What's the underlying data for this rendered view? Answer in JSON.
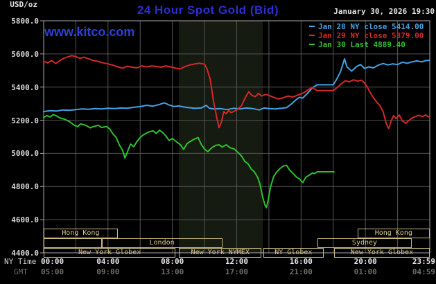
{
  "header": {
    "units_label": "USD/oz",
    "title": "24 Hour Spot Gold (Bid)",
    "datetime": "January 30, 2026 19:30",
    "watermark": "www.kitco.com"
  },
  "legend": {
    "items": [
      {
        "label": "Jan 28 NY close 5414.00",
        "color": "#44a4e4"
      },
      {
        "label": "Jan 29 NY close 5379.00",
        "color": "#d62828"
      },
      {
        "label": "Jan 30 Last 4889.40",
        "color": "#2cc22c"
      }
    ]
  },
  "axes": {
    "ny_time_label": "NY Time",
    "gmt_label": "GMT",
    "yticks": [
      {
        "label": "5800.0",
        "value": 5800
      },
      {
        "label": "5600.0",
        "value": 5600
      },
      {
        "label": "5400.0",
        "value": 5400
      },
      {
        "label": "5200.0",
        "value": 5200
      },
      {
        "label": "5000.0",
        "value": 5000
      },
      {
        "label": "4800.0",
        "value": 4800
      },
      {
        "label": "4600.0",
        "value": 4600
      },
      {
        "label": "4400.0",
        "value": 4400
      }
    ],
    "xticks": [
      {
        "t": 0,
        "ny": "00:00",
        "gmt": "05:00",
        "align": "left"
      },
      {
        "t": 4,
        "ny": "04:00",
        "gmt": "09:00",
        "align": "center"
      },
      {
        "t": 8,
        "ny": "08:00",
        "gmt": "13:00",
        "align": "center"
      },
      {
        "t": 12,
        "ny": "12:00",
        "gmt": "17:00",
        "align": "center"
      },
      {
        "t": 16,
        "ny": "16:00",
        "gmt": "21:00",
        "align": "center"
      },
      {
        "t": 20,
        "ny": "20:00",
        "gmt": "01:00",
        "align": "center"
      },
      {
        "t": 23.983,
        "ny": "23:59",
        "gmt": "04:59",
        "align": "right"
      }
    ]
  },
  "sessions": {
    "rows": [
      {
        "boxes": [
          {
            "label": "Hong Kong",
            "t0": 0,
            "t1": 4.6
          },
          {
            "label": "Hong Kong",
            "t0": 19.5,
            "t1": 24
          }
        ]
      },
      {
        "boxes": [
          {
            "label": "",
            "t0": 0,
            "t1": 3.6
          },
          {
            "label": "London",
            "t0": 3.6,
            "t1": 11.1
          },
          {
            "label": "Sydney",
            "t0": 17.0,
            "t1": 22.9
          }
        ]
      },
      {
        "boxes": [
          {
            "label": "New York Globex",
            "t0": 0,
            "t1": 8.2
          },
          {
            "label": "New York NYMEX",
            "t0": 8.4,
            "t1": 13.55
          },
          {
            "label": "NY Globex",
            "t0": 13.65,
            "t1": 17.4
          },
          {
            "label": "New York Globex",
            "t0": 18.05,
            "t1": 24
          }
        ]
      }
    ]
  },
  "colors": {
    "background": "#000000",
    "title_blue": "#2e2ecf",
    "watermark_blue": "#2f40d8",
    "text_white": "#e4e4e4",
    "text_gray": "#6e6e6e",
    "session_tan": "#cdbb82",
    "gridline": "#555555",
    "plot_border": "#aaaaaa",
    "nymex_band": "#161b12",
    "jan28_blue": "#44a4e4",
    "jan29_red": "#d62828",
    "jan30_green": "#2cc22c"
  },
  "chart_data": {
    "type": "line",
    "title": "24 Hour Spot Gold (Bid)",
    "ylabel": "USD/oz",
    "x_unit": "NY time (hours 0-24)",
    "xlim": [
      0,
      24
    ],
    "ylim": [
      4400,
      5800
    ],
    "y_gridline_step": 200,
    "x_gridline_step_hours": 2,
    "legend_position": "top-right",
    "shaded_band": {
      "label": "New York NYMEX",
      "t0": 8.4,
      "t1": 13.62,
      "color": "#161b12"
    },
    "series": [
      {
        "name": "Jan 28",
        "close_label": "NY close 5414.00",
        "color": "#44a4e4",
        "points": [
          [
            0,
            5252
          ],
          [
            0.4,
            5258
          ],
          [
            0.8,
            5255
          ],
          [
            1.2,
            5262
          ],
          [
            1.6,
            5260
          ],
          [
            2,
            5264
          ],
          [
            2.4,
            5268
          ],
          [
            2.8,
            5266
          ],
          [
            3.2,
            5270
          ],
          [
            3.6,
            5268
          ],
          [
            4,
            5272
          ],
          [
            4.4,
            5270
          ],
          [
            4.8,
            5274
          ],
          [
            5.2,
            5272
          ],
          [
            5.6,
            5278
          ],
          [
            6,
            5282
          ],
          [
            6.4,
            5290
          ],
          [
            6.8,
            5285
          ],
          [
            7.2,
            5295
          ],
          [
            7.5,
            5305
          ],
          [
            7.8,
            5292
          ],
          [
            8.1,
            5283
          ],
          [
            8.4,
            5286
          ],
          [
            8.7,
            5280
          ],
          [
            9,
            5276
          ],
          [
            9.4,
            5272
          ],
          [
            9.8,
            5274
          ],
          [
            10.1,
            5290
          ],
          [
            10.3,
            5272
          ],
          [
            10.6,
            5268
          ],
          [
            11,
            5270
          ],
          [
            11.4,
            5264
          ],
          [
            11.8,
            5272
          ],
          [
            12.2,
            5268
          ],
          [
            12.6,
            5274
          ],
          [
            13,
            5270
          ],
          [
            13.4,
            5262
          ],
          [
            13.7,
            5274
          ],
          [
            14,
            5270
          ],
          [
            14.4,
            5268
          ],
          [
            14.8,
            5272
          ],
          [
            15.1,
            5276
          ],
          [
            15.4,
            5298
          ],
          [
            15.7,
            5325
          ],
          [
            15.9,
            5338
          ],
          [
            16.1,
            5334
          ],
          [
            16.4,
            5362
          ],
          [
            16.7,
            5396
          ],
          [
            17,
            5414
          ],
          [
            18,
            5414
          ],
          [
            18.2,
            5445
          ],
          [
            18.45,
            5492
          ],
          [
            18.7,
            5570
          ],
          [
            18.85,
            5522
          ],
          [
            19.15,
            5496
          ],
          [
            19.45,
            5524
          ],
          [
            19.7,
            5536
          ],
          [
            19.95,
            5512
          ],
          [
            20.2,
            5522
          ],
          [
            20.5,
            5516
          ],
          [
            20.8,
            5532
          ],
          [
            21.1,
            5542
          ],
          [
            21.4,
            5534
          ],
          [
            21.7,
            5540
          ],
          [
            22,
            5536
          ],
          [
            22.3,
            5550
          ],
          [
            22.6,
            5544
          ],
          [
            22.9,
            5552
          ],
          [
            23.2,
            5558
          ],
          [
            23.5,
            5552
          ],
          [
            23.75,
            5560
          ],
          [
            24,
            5562
          ]
        ]
      },
      {
        "name": "Jan 29",
        "close_label": "NY close 5379.00",
        "color": "#d62828",
        "points": [
          [
            0,
            5556
          ],
          [
            0.25,
            5546
          ],
          [
            0.5,
            5560
          ],
          [
            0.75,
            5542
          ],
          [
            1,
            5560
          ],
          [
            1.25,
            5574
          ],
          [
            1.5,
            5582
          ],
          [
            1.75,
            5590
          ],
          [
            2,
            5584
          ],
          [
            2.25,
            5574
          ],
          [
            2.5,
            5580
          ],
          [
            2.8,
            5570
          ],
          [
            3.1,
            5560
          ],
          [
            3.4,
            5554
          ],
          [
            3.7,
            5546
          ],
          [
            4,
            5540
          ],
          [
            4.3,
            5532
          ],
          [
            4.6,
            5522
          ],
          [
            4.9,
            5514
          ],
          [
            5.2,
            5526
          ],
          [
            5.5,
            5520
          ],
          [
            5.8,
            5516
          ],
          [
            6.1,
            5528
          ],
          [
            6.4,
            5522
          ],
          [
            6.7,
            5528
          ],
          [
            7,
            5524
          ],
          [
            7.3,
            5520
          ],
          [
            7.6,
            5528
          ],
          [
            7.9,
            5522
          ],
          [
            8.2,
            5514
          ],
          [
            8.5,
            5510
          ],
          [
            8.8,
            5524
          ],
          [
            9.1,
            5534
          ],
          [
            9.4,
            5540
          ],
          [
            9.7,
            5544
          ],
          [
            10,
            5538
          ],
          [
            10.15,
            5510
          ],
          [
            10.35,
            5448
          ],
          [
            10.55,
            5320
          ],
          [
            10.75,
            5220
          ],
          [
            10.9,
            5155
          ],
          [
            11.05,
            5190
          ],
          [
            11.2,
            5252
          ],
          [
            11.35,
            5240
          ],
          [
            11.5,
            5258
          ],
          [
            11.65,
            5246
          ],
          [
            11.8,
            5252
          ],
          [
            12,
            5262
          ],
          [
            12.3,
            5288
          ],
          [
            12.55,
            5340
          ],
          [
            12.75,
            5372
          ],
          [
            12.95,
            5350
          ],
          [
            13.15,
            5342
          ],
          [
            13.35,
            5362
          ],
          [
            13.55,
            5346
          ],
          [
            13.8,
            5356
          ],
          [
            14,
            5350
          ],
          [
            14.3,
            5338
          ],
          [
            14.6,
            5328
          ],
          [
            14.9,
            5336
          ],
          [
            15.2,
            5346
          ],
          [
            15.5,
            5340
          ],
          [
            15.8,
            5352
          ],
          [
            16.1,
            5362
          ],
          [
            16.4,
            5382
          ],
          [
            16.7,
            5398
          ],
          [
            16.85,
            5388
          ],
          [
            17,
            5379
          ],
          [
            18,
            5379
          ],
          [
            18.25,
            5398
          ],
          [
            18.5,
            5420
          ],
          [
            18.75,
            5438
          ],
          [
            19,
            5432
          ],
          [
            19.25,
            5444
          ],
          [
            19.5,
            5436
          ],
          [
            19.75,
            5442
          ],
          [
            19.95,
            5424
          ],
          [
            20.15,
            5394
          ],
          [
            20.4,
            5350
          ],
          [
            20.65,
            5316
          ],
          [
            20.9,
            5288
          ],
          [
            21.1,
            5252
          ],
          [
            21.3,
            5178
          ],
          [
            21.45,
            5150
          ],
          [
            21.6,
            5196
          ],
          [
            21.75,
            5228
          ],
          [
            21.9,
            5210
          ],
          [
            22.1,
            5232
          ],
          [
            22.3,
            5196
          ],
          [
            22.5,
            5182
          ],
          [
            22.7,
            5198
          ],
          [
            22.9,
            5214
          ],
          [
            23.1,
            5222
          ],
          [
            23.3,
            5230
          ],
          [
            23.55,
            5222
          ],
          [
            23.75,
            5232
          ],
          [
            24,
            5216
          ]
        ]
      },
      {
        "name": "Jan 30",
        "close_label": "Last 4889.40",
        "color": "#2cc22c",
        "points": [
          [
            0,
            5216
          ],
          [
            0.2,
            5228
          ],
          [
            0.4,
            5220
          ],
          [
            0.6,
            5234
          ],
          [
            0.8,
            5226
          ],
          [
            1,
            5214
          ],
          [
            1.3,
            5206
          ],
          [
            1.6,
            5192
          ],
          [
            1.9,
            5170
          ],
          [
            2.1,
            5162
          ],
          [
            2.3,
            5178
          ],
          [
            2.6,
            5170
          ],
          [
            2.9,
            5154
          ],
          [
            3.1,
            5162
          ],
          [
            3.4,
            5170
          ],
          [
            3.6,
            5156
          ],
          [
            3.9,
            5162
          ],
          [
            4.1,
            5148
          ],
          [
            4.3,
            5118
          ],
          [
            4.5,
            5098
          ],
          [
            4.7,
            5052
          ],
          [
            4.9,
            5020
          ],
          [
            5.05,
            4972
          ],
          [
            5.2,
            5008
          ],
          [
            5.4,
            5056
          ],
          [
            5.6,
            5040
          ],
          [
            5.8,
            5072
          ],
          [
            6,
            5096
          ],
          [
            6.2,
            5112
          ],
          [
            6.5,
            5128
          ],
          [
            6.8,
            5136
          ],
          [
            7,
            5120
          ],
          [
            7.2,
            5140
          ],
          [
            7.4,
            5126
          ],
          [
            7.6,
            5104
          ],
          [
            7.8,
            5078
          ],
          [
            8,
            5090
          ],
          [
            8.2,
            5074
          ],
          [
            8.5,
            5052
          ],
          [
            8.7,
            5024
          ],
          [
            8.9,
            5058
          ],
          [
            9.1,
            5072
          ],
          [
            9.4,
            5088
          ],
          [
            9.6,
            5096
          ],
          [
            9.8,
            5054
          ],
          [
            10,
            5026
          ],
          [
            10.2,
            5010
          ],
          [
            10.45,
            5034
          ],
          [
            10.7,
            5048
          ],
          [
            10.9,
            5052
          ],
          [
            11.1,
            5038
          ],
          [
            11.35,
            5052
          ],
          [
            11.6,
            5034
          ],
          [
            11.85,
            5026
          ],
          [
            12.1,
            5004
          ],
          [
            12.3,
            4984
          ],
          [
            12.5,
            4952
          ],
          [
            12.7,
            4938
          ],
          [
            12.9,
            4906
          ],
          [
            13.1,
            4888
          ],
          [
            13.3,
            4856
          ],
          [
            13.45,
            4812
          ],
          [
            13.6,
            4742
          ],
          [
            13.75,
            4690
          ],
          [
            13.85,
            4672
          ],
          [
            13.95,
            4716
          ],
          [
            14.1,
            4796
          ],
          [
            14.3,
            4862
          ],
          [
            14.5,
            4890
          ],
          [
            14.7,
            4910
          ],
          [
            14.9,
            4924
          ],
          [
            15.1,
            4928
          ],
          [
            15.3,
            4898
          ],
          [
            15.5,
            4880
          ],
          [
            15.7,
            4858
          ],
          [
            15.9,
            4846
          ],
          [
            16.1,
            4824
          ],
          [
            16.3,
            4856
          ],
          [
            16.5,
            4868
          ],
          [
            16.7,
            4882
          ],
          [
            16.85,
            4878
          ],
          [
            17,
            4889
          ],
          [
            18.05,
            4889
          ]
        ]
      }
    ]
  }
}
